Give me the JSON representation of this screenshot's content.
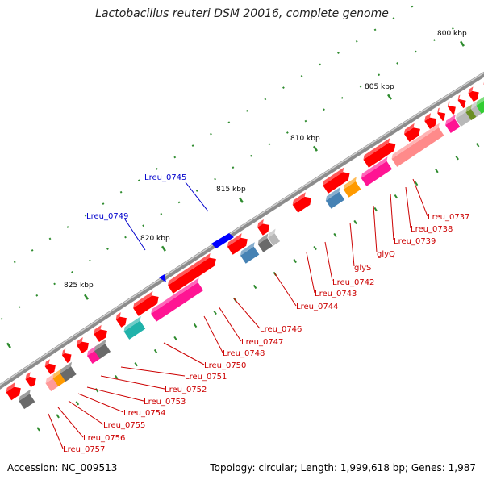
{
  "title": "Lactobacillus reuteri DSM 20016, complete genome",
  "footer": {
    "accession": "Accession: NC_009513",
    "summary": "Topology: circular; Length: 1,999,618 bp; Genes: 1,987"
  },
  "ticks": [
    "800 kbp",
    "805 kbp",
    "810 kbp",
    "815 kbp",
    "820 kbp",
    "825 kbp"
  ],
  "colors": {
    "backbone": "#8c8c8c",
    "cds": "#ff0000",
    "label_red": "#cc0000",
    "label_blue": "#0000cc",
    "tick": "#2e8b2e"
  },
  "labels_plus": [
    "Lreu_0745",
    "Lreu_0749"
  ],
  "labels_minus": [
    "Lreu_0737",
    "Lreu_0738",
    "Lreu_0739",
    "glyQ",
    "glyS",
    "Lreu_0742",
    "Lreu_0743",
    "Lreu_0744",
    "Lreu_0746",
    "Lreu_0747",
    "Lreu_0748",
    "Lreu_0750",
    "Lreu_0751",
    "Lreu_0752",
    "Lreu_0753",
    "Lreu_0754",
    "Lreu_0755",
    "Lreu_0756",
    "Lreu_0757"
  ]
}
